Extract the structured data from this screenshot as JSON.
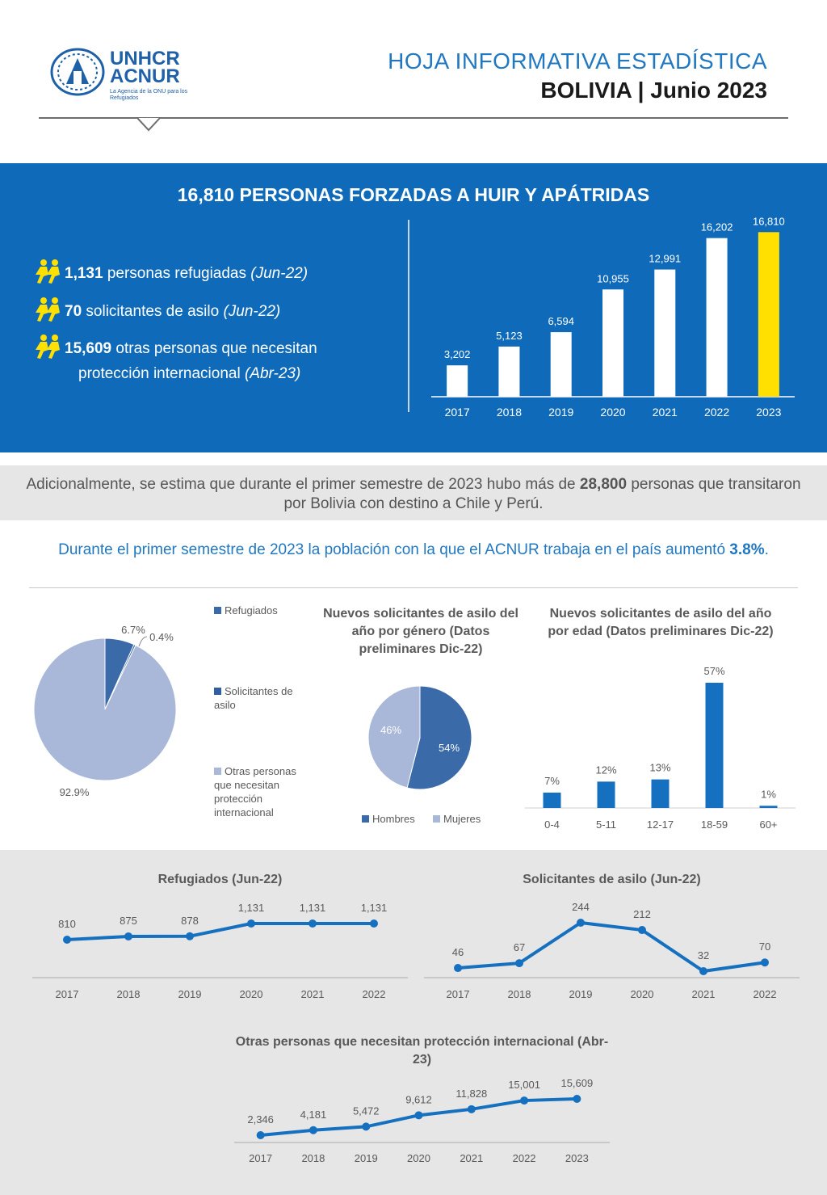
{
  "header": {
    "org_line1": "UNHCR",
    "org_line2": "ACNUR",
    "org_tagline": "La Agencia de la ONU para los Refugiados",
    "title_line1": "HOJA INFORMATIVA ESTADÍSTICA",
    "title_line2": "BOLIVIA | Junio 2023"
  },
  "banner": {
    "headline": "16,810 PERSONAS FORZADAS A HUIR Y APÁTRIDAS",
    "stats": [
      {
        "value": "1,131",
        "text": " personas refugiadas ",
        "note": "(Jun-22)"
      },
      {
        "value": "70",
        "text": " solicitantes de asilo ",
        "note": "(Jun-22)"
      },
      {
        "value": "15,609",
        "text": " otras personas que necesitan",
        "text2": "protección internacional ",
        "note": "(Abr-23)"
      }
    ]
  },
  "additional": {
    "pre": "Adicionalmente, se estima que durante el primer semestre de 2023 hubo más de ",
    "value": "28,800",
    "post": " personas que transitaron por Bolivia con destino a Chile y Perú."
  },
  "growth": {
    "pre": "Durante el primer semestre de 2023 la población con la que el ACNUR trabaja en el país aumentó ",
    "value": "3.8%",
    "post": "."
  },
  "chart_data": [
    {
      "id": "total-bar",
      "type": "bar",
      "categories": [
        "2017",
        "2018",
        "2019",
        "2020",
        "2021",
        "2022",
        "2023"
      ],
      "values": [
        3202,
        5123,
        6594,
        10955,
        12991,
        16202,
        16810
      ],
      "value_labels": [
        "3,202",
        "5,123",
        "6,594",
        "10,955",
        "12,991",
        "16,202",
        "16,810"
      ],
      "colors": {
        "default": "#ffffff",
        "highlight": "#ffe000",
        "highlight_index": 6
      }
    },
    {
      "id": "composition-pie",
      "type": "pie",
      "labels": [
        "Refugiados",
        "Solicitantes de asilo",
        "Otras personas que necesitan protección internacional"
      ],
      "values": [
        6.7,
        0.4,
        92.9
      ],
      "value_labels": [
        "6.7%",
        "0.4%",
        "92.9%"
      ],
      "colors": [
        "#3b6aa8",
        "#2f5f9e",
        "#a9b8d8"
      ]
    },
    {
      "id": "gender-pie",
      "type": "pie",
      "title": "Nuevos solicitantes de asilo del año por género (Datos preliminares Dic-22)",
      "labels": [
        "Hombres",
        "Mujeres"
      ],
      "values": [
        54,
        46
      ],
      "value_labels": [
        "54%",
        "46%"
      ],
      "colors": [
        "#3b6aa8",
        "#a9b8d8"
      ]
    },
    {
      "id": "age-bar",
      "type": "bar",
      "title": "Nuevos solicitantes de asilo del año por edad (Datos preliminares Dic-22)",
      "categories": [
        "0-4",
        "5-11",
        "12-17",
        "18-59",
        "60+"
      ],
      "values": [
        7,
        12,
        13,
        57,
        1
      ],
      "value_labels": [
        "7%",
        "12%",
        "13%",
        "57%",
        "1%"
      ],
      "color": "#1670c0"
    },
    {
      "id": "refugees-line",
      "type": "line",
      "title": "Refugiados (Jun-22)",
      "x": [
        "2017",
        "2018",
        "2019",
        "2020",
        "2021",
        "2022"
      ],
      "values": [
        810,
        875,
        878,
        1131,
        1131,
        1131
      ],
      "value_labels": [
        "810",
        "875",
        "878",
        "1,131",
        "1,131",
        "1,131"
      ],
      "color": "#1670c0"
    },
    {
      "id": "asylum-line",
      "type": "line",
      "title": "Solicitantes de asilo (Jun-22)",
      "x": [
        "2017",
        "2018",
        "2019",
        "2020",
        "2021",
        "2022"
      ],
      "values": [
        46,
        67,
        244,
        212,
        32,
        70
      ],
      "value_labels": [
        "46",
        "67",
        "244",
        "212",
        "32",
        "70"
      ],
      "color": "#1670c0"
    },
    {
      "id": "others-line",
      "type": "line",
      "title": "Otras personas que necesitan protección internacional (Abr-23)",
      "x": [
        "2017",
        "2018",
        "2019",
        "2020",
        "2021",
        "2022",
        "2023"
      ],
      "values": [
        2346,
        4181,
        5472,
        9612,
        11828,
        15001,
        15609
      ],
      "value_labels": [
        "2,346",
        "4,181",
        "5,472",
        "9,612",
        "11,828",
        "15,001",
        "15,609"
      ],
      "color": "#1670c0"
    }
  ]
}
